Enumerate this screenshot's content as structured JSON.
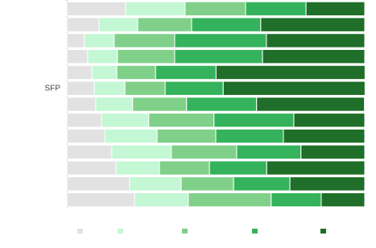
{
  "chart_data": {
    "type": "stacked-barh",
    "categories": [
      null,
      null,
      null,
      null,
      null,
      "SFP",
      null,
      null,
      null,
      null,
      null,
      null,
      null
    ],
    "xlim": [
      0,
      100
    ],
    "series": [
      {
        "color": "#e2e2e2",
        "values": [
          19.7,
          10.8,
          5.9,
          7.0,
          8.4,
          9.2,
          9.7,
          11.6,
          12.7,
          15.1,
          16.5,
          21.1,
          22.7
        ]
      },
      {
        "color": "#c4f7d4",
        "values": [
          20.0,
          13.0,
          10.0,
          10.0,
          8.4,
          10.3,
          12.4,
          15.9,
          17.6,
          20.0,
          14.6,
          17.3,
          18.1
        ]
      },
      {
        "color": "#80d08a",
        "values": [
          20.3,
          18.1,
          20.3,
          19.2,
          13.0,
          13.5,
          18.1,
          21.9,
          19.7,
          21.9,
          16.8,
          17.6,
          27.8
        ]
      },
      {
        "color": "#34b35c",
        "values": [
          20.3,
          23.2,
          30.8,
          29.5,
          20.3,
          19.5,
          23.5,
          26.8,
          22.7,
          21.6,
          19.2,
          18.9,
          16.8
        ]
      },
      {
        "color": "#1f6e29",
        "values": [
          19.7,
          34.9,
          33.0,
          34.3,
          50.0,
          47.6,
          36.2,
          23.8,
          27.3,
          21.4,
          32.9,
          25.1,
          14.6
        ]
      }
    ]
  }
}
